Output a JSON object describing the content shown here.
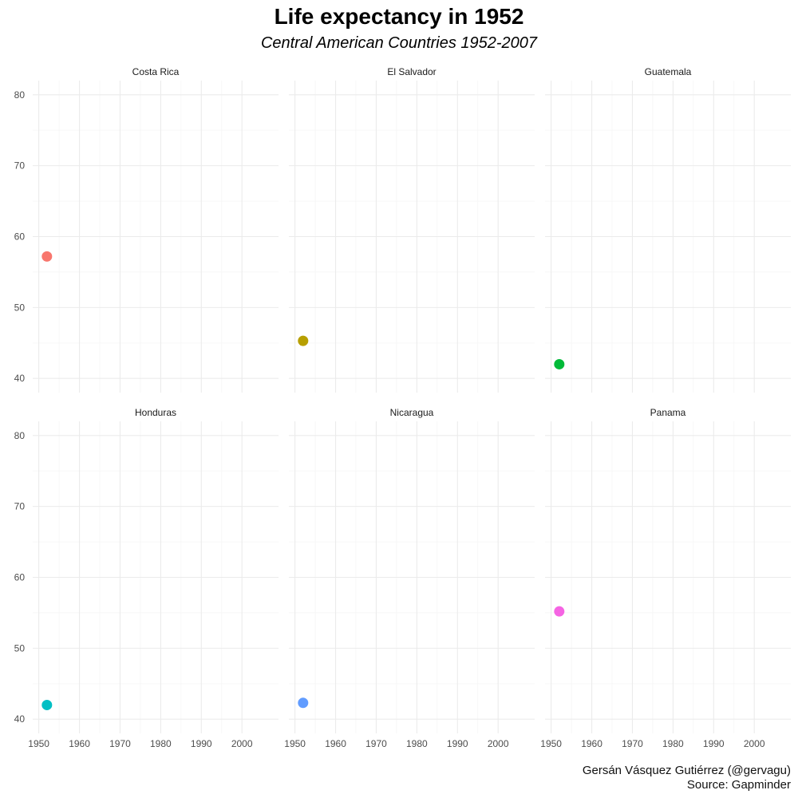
{
  "title": "Life expectancy in 1952",
  "subtitle": "Central American Countries 1952-2007",
  "caption": {
    "line1": "Gersán Vásquez Gutiérrez (@gervagu)",
    "line2": "Source: Gapminder"
  },
  "chart_data": {
    "type": "scatter",
    "facet": true,
    "xlim": [
      1948.5,
      2009
    ],
    "ylim": [
      38,
      82
    ],
    "x_ticks": [
      1950,
      1960,
      1970,
      1980,
      1990,
      2000
    ],
    "y_ticks": [
      40,
      50,
      60,
      70,
      80
    ],
    "grid": true,
    "panels": [
      {
        "name": "Costa Rica",
        "x": [
          1952
        ],
        "y": [
          57.2
        ],
        "color": "#F8766D"
      },
      {
        "name": "El Salvador",
        "x": [
          1952
        ],
        "y": [
          45.3
        ],
        "color": "#B79F00"
      },
      {
        "name": "Guatemala",
        "x": [
          1952
        ],
        "y": [
          42.0
        ],
        "color": "#00BA38"
      },
      {
        "name": "Honduras",
        "x": [
          1952
        ],
        "y": [
          42.0
        ],
        "color": "#00BFC4"
      },
      {
        "name": "Nicaragua",
        "x": [
          1952
        ],
        "y": [
          42.3
        ],
        "color": "#619CFF"
      },
      {
        "name": "Panama",
        "x": [
          1952
        ],
        "y": [
          55.2
        ],
        "color": "#F564E3"
      }
    ]
  }
}
